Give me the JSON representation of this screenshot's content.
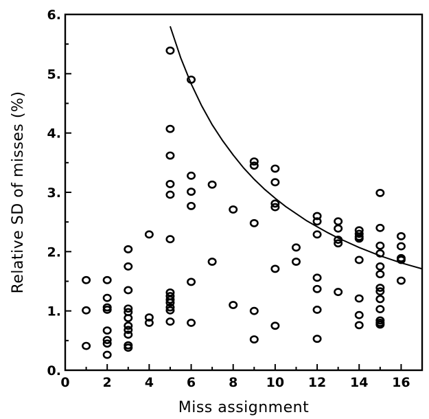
{
  "chart_data": {
    "type": "scatter",
    "xlabel": "Miss assignment",
    "ylabel": "Relative SD of misses (%)",
    "xlim": [
      0,
      17
    ],
    "ylim": [
      0,
      6
    ],
    "x_ticks": [
      0,
      2,
      4,
      6,
      8,
      10,
      12,
      14,
      16
    ],
    "x_tick_labels": [
      "0",
      "2",
      "4",
      "6",
      "8",
      "10",
      "12",
      "14",
      "16"
    ],
    "y_ticks": [
      0,
      1,
      2,
      3,
      4,
      5,
      6
    ],
    "y_tick_labels": [
      "0.",
      "1.",
      "2.",
      "3.",
      "4.",
      "5.",
      "6."
    ],
    "series": [
      {
        "marker": "open-circle",
        "points": [
          [
            1,
            1.52
          ],
          [
            1,
            1.01
          ],
          [
            1,
            0.41
          ],
          [
            2,
            1.52
          ],
          [
            2,
            1.22
          ],
          [
            2,
            1.06
          ],
          [
            2,
            1.02
          ],
          [
            2,
            0.67
          ],
          [
            2,
            0.51
          ],
          [
            2,
            0.45
          ],
          [
            2,
            0.26
          ],
          [
            3,
            2.04
          ],
          [
            3,
            1.75
          ],
          [
            3,
            1.35
          ],
          [
            3,
            1.04
          ],
          [
            3,
            0.98
          ],
          [
            3,
            0.88
          ],
          [
            3,
            0.75
          ],
          [
            3,
            0.68
          ],
          [
            3,
            0.6
          ],
          [
            3,
            0.42
          ],
          [
            3,
            0.38
          ],
          [
            4,
            2.29
          ],
          [
            4,
            0.89
          ],
          [
            4,
            0.8
          ],
          [
            5,
            5.39
          ],
          [
            5,
            4.07
          ],
          [
            5,
            3.62
          ],
          [
            5,
            3.14
          ],
          [
            5,
            2.96
          ],
          [
            5,
            2.21
          ],
          [
            5,
            1.31
          ],
          [
            5,
            1.25
          ],
          [
            5,
            1.19
          ],
          [
            5,
            1.14
          ],
          [
            5,
            1.06
          ],
          [
            5,
            1.01
          ],
          [
            5,
            0.82
          ],
          [
            6,
            4.9
          ],
          [
            6,
            3.28
          ],
          [
            6,
            3.01
          ],
          [
            6,
            2.77
          ],
          [
            6,
            1.49
          ],
          [
            6,
            0.8
          ],
          [
            7,
            3.13
          ],
          [
            7,
            1.83
          ],
          [
            8,
            2.71
          ],
          [
            8,
            1.1
          ],
          [
            9,
            3.52
          ],
          [
            9,
            3.45
          ],
          [
            9,
            2.48
          ],
          [
            9,
            1.0
          ],
          [
            9,
            0.52
          ],
          [
            10,
            3.4
          ],
          [
            10,
            3.17
          ],
          [
            10,
            2.81
          ],
          [
            10,
            2.75
          ],
          [
            10,
            1.71
          ],
          [
            10,
            0.75
          ],
          [
            11,
            2.07
          ],
          [
            11,
            1.83
          ],
          [
            12,
            2.6
          ],
          [
            12,
            2.51
          ],
          [
            12,
            2.29
          ],
          [
            12,
            1.56
          ],
          [
            12,
            1.37
          ],
          [
            12,
            1.02
          ],
          [
            12,
            0.53
          ],
          [
            13,
            2.51
          ],
          [
            13,
            2.39
          ],
          [
            13,
            2.2
          ],
          [
            13,
            2.14
          ],
          [
            13,
            1.32
          ],
          [
            14,
            2.36
          ],
          [
            14,
            2.3
          ],
          [
            14,
            2.25
          ],
          [
            14,
            2.22
          ],
          [
            14,
            1.86
          ],
          [
            14,
            1.21
          ],
          [
            14,
            0.93
          ],
          [
            14,
            0.76
          ],
          [
            15,
            2.99
          ],
          [
            15,
            2.4
          ],
          [
            15,
            2.1
          ],
          [
            15,
            1.97
          ],
          [
            15,
            1.75
          ],
          [
            15,
            1.62
          ],
          [
            15,
            1.39
          ],
          [
            15,
            1.33
          ],
          [
            15,
            1.2
          ],
          [
            15,
            1.03
          ],
          [
            15,
            0.84
          ],
          [
            15,
            0.8
          ],
          [
            15,
            0.77
          ],
          [
            16,
            2.26
          ],
          [
            16,
            2.09
          ],
          [
            16,
            1.89
          ],
          [
            16,
            1.86
          ],
          [
            16,
            1.51
          ]
        ]
      },
      {
        "type": "line",
        "style": "solid",
        "points": [
          [
            5,
            5.8
          ],
          [
            5.5,
            5.27
          ],
          [
            6,
            4.83
          ],
          [
            6.5,
            4.46
          ],
          [
            7,
            4.14
          ],
          [
            7.5,
            3.87
          ],
          [
            8,
            3.63
          ],
          [
            8.5,
            3.41
          ],
          [
            9,
            3.22
          ],
          [
            9.5,
            3.05
          ],
          [
            10,
            2.9
          ],
          [
            10.5,
            2.76
          ],
          [
            11,
            2.64
          ],
          [
            11.5,
            2.52
          ],
          [
            12,
            2.42
          ],
          [
            12.5,
            2.32
          ],
          [
            13,
            2.23
          ],
          [
            13.5,
            2.15
          ],
          [
            14,
            2.07
          ],
          [
            14.5,
            2.0
          ],
          [
            15,
            1.93
          ],
          [
            15.5,
            1.87
          ],
          [
            16,
            1.81
          ],
          [
            16.5,
            1.76
          ],
          [
            17,
            1.71
          ]
        ]
      }
    ],
    "grid": false,
    "legend": "none"
  }
}
